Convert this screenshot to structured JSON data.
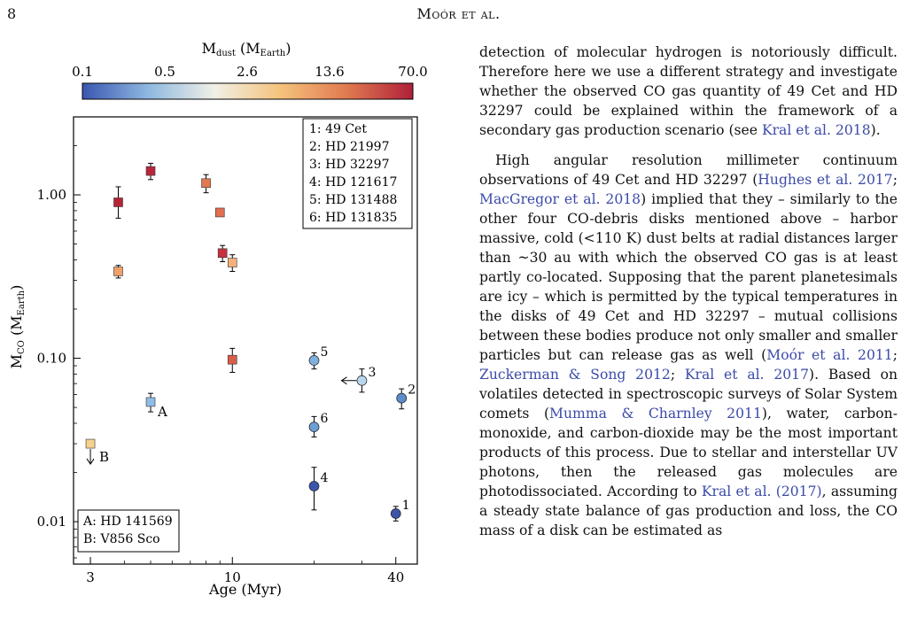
{
  "header": {
    "page_number": "8",
    "running_title": "Moór et al."
  },
  "colorbar": {
    "label": "M_dust (M_Earth)",
    "label_main": "M",
    "label_sub": "dust",
    "label_unit_open": " (M",
    "label_unit_sub": "Earth",
    "label_unit_close": ")",
    "ticks": [
      "0.1",
      "0.5",
      "2.6",
      "13.6",
      "70.0"
    ],
    "colors": [
      "#3a56b0",
      "#8fb9e0",
      "#f0f0e6",
      "#f5c27c",
      "#e07a50",
      "#b0203a"
    ]
  },
  "chart_data": {
    "type": "scatter",
    "xlabel": "Age (Myr)",
    "ylabel": "M_CO (M_Earth)",
    "xscale": "log",
    "yscale": "log",
    "xlim": [
      2.6,
      48
    ],
    "ylim": [
      0.0055,
      3.0
    ],
    "xticks": [
      3,
      10,
      40
    ],
    "xticklabels": [
      "3",
      "10",
      "40"
    ],
    "yticks": [
      0.01,
      0.1,
      1.0
    ],
    "yticklabels": [
      "0.01",
      "0.10",
      "1.00"
    ],
    "legend_numbers": [
      "1: 49 Cet",
      "2: HD 21997",
      "3: HD 32297",
      "4: HD 121617",
      "5: HD 131488",
      "6: HD 131835"
    ],
    "legend_letters": [
      "A: HD 141569",
      "B: V856 Sco"
    ],
    "squares": [
      {
        "x": 3.0,
        "y": 0.03,
        "color": "#f6d18e",
        "upper_limit": true,
        "label": "B"
      },
      {
        "x": 3.8,
        "y": 0.9,
        "err": [
          0.72,
          1.12
        ],
        "color": "#b52537"
      },
      {
        "x": 3.8,
        "y": 0.34,
        "err": [
          0.31,
          0.37
        ],
        "color": "#f0a06a"
      },
      {
        "x": 5.0,
        "y": 0.054,
        "err": [
          0.047,
          0.061
        ],
        "color": "#8fbce6",
        "label": "A"
      },
      {
        "x": 5.0,
        "y": 1.4,
        "err": [
          1.24,
          1.56
        ],
        "color": "#b8263c"
      },
      {
        "x": 8.0,
        "y": 1.18,
        "err": [
          1.03,
          1.33
        ],
        "color": "#e07a52"
      },
      {
        "x": 9.0,
        "y": 0.78,
        "color": "#e07050"
      },
      {
        "x": 9.2,
        "y": 0.44,
        "err": [
          0.39,
          0.49
        ],
        "color": "#c83040"
      },
      {
        "x": 10.0,
        "y": 0.385,
        "err": [
          0.34,
          0.43
        ],
        "color": "#f5b07a"
      },
      {
        "x": 10.0,
        "y": 0.098,
        "err": [
          0.082,
          0.115
        ],
        "color": "#d85e48"
      }
    ],
    "circles": [
      {
        "x": 20.0,
        "y": 0.097,
        "err": [
          0.086,
          0.108
        ],
        "color": "#7fb0dd",
        "label": "5"
      },
      {
        "x": 20.0,
        "y": 0.038,
        "err": [
          0.033,
          0.044
        ],
        "color": "#6c9fd5",
        "label": "6"
      },
      {
        "x": 20.0,
        "y": 0.0165,
        "err": [
          0.0118,
          0.0215
        ],
        "color": "#3a57ad",
        "label": "4"
      },
      {
        "x": 30.0,
        "y": 0.073,
        "err": [
          0.062,
          0.086
        ],
        "color": "#b8d6ee",
        "label": "3",
        "left_arrow": true
      },
      {
        "x": 42.0,
        "y": 0.057,
        "err": [
          0.049,
          0.065
        ],
        "color": "#5d8ccc",
        "label": "2"
      },
      {
        "x": 40.0,
        "y": 0.0112,
        "err": [
          0.0101,
          0.0124
        ],
        "color": "#3b55a8",
        "label": "1"
      }
    ]
  },
  "body": {
    "p1_a": "detection of molecular hydrogen is notoriously difficult. Therefore here we use a different strategy and investigate whether the observed CO gas quantity of 49 Cet and HD 32297 could be explained within the framework of a secondary gas production scenario (see ",
    "p1_cite1": "Kral et al. 2018",
    "p1_b": ").",
    "p2_a": "High angular resolution millimeter continuum observations of 49 Cet and HD 32297 (",
    "p2_cite1": "Hughes et al. 2017",
    "p2_b": "; ",
    "p2_cite2": "MacGregor et al. 2018",
    "p2_c": ") implied that they – similarly to the other four CO-debris disks mentioned above – harbor massive, cold (<110 K) dust belts at radial distances larger than ~30 au with which the observed CO gas is at least partly co-located. Supposing that the parent planetesimals are icy – which is permitted by the typical temperatures in the disks of 49 Cet and HD 32297 – mutual collisions between these bodies produce not only smaller and smaller particles but can release gas as well (",
    "p2_cite3": "Moór et al. 2011",
    "p2_d": "; ",
    "p2_cite4": "Zuckerman & Song 2012",
    "p2_e": "; ",
    "p2_cite5": "Kral et al. 2017",
    "p2_f": "). Based on volatiles detected in spectroscopic surveys of Solar System comets (",
    "p2_cite6": "Mumma & Charnley 2011",
    "p2_g": "), water, carbon-monoxide, and carbon-dioxide may be the most important products of this process. Due to stellar and interstellar UV photons, then the released gas molecules are photodissociated. According to ",
    "p2_cite7": "Kral et al. (2017)",
    "p2_h": ", assuming a steady state balance of gas production and loss, the CO mass of a disk can be estimated as"
  }
}
